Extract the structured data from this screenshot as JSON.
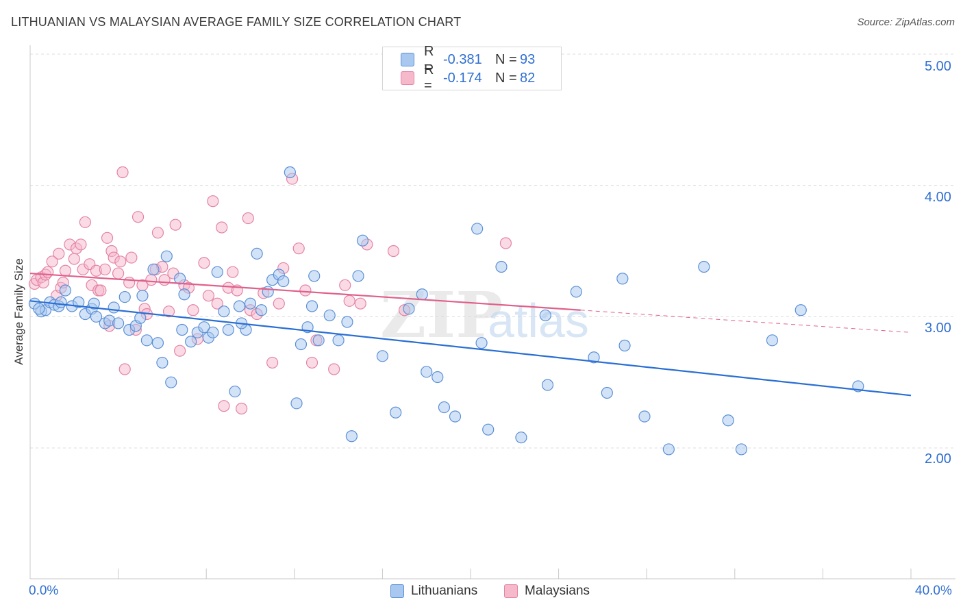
{
  "title": "LITHUANIAN VS MALAYSIAN AVERAGE FAMILY SIZE CORRELATION CHART",
  "source": "Source: ZipAtlas.com",
  "colors": {
    "blue_fill": "#a8c8f0",
    "blue_stroke": "#5b8fd6",
    "blue_line": "#2a6fd4",
    "pink_fill": "#f6b8cb",
    "pink_stroke": "#e483a5",
    "pink_line": "#e0608a",
    "tick_text": "#2f6fd1",
    "grid": "#dcdcdc"
  },
  "legend": {
    "rows": [
      {
        "r_label": "R =",
        "r_value": "-0.381",
        "n_label": "N =",
        "n_value": "93"
      },
      {
        "r_label": "R =",
        "r_value": "-0.174",
        "n_label": "N =",
        "n_value": "82"
      }
    ]
  },
  "chart_data": {
    "type": "scatter",
    "title": "LITHUANIAN VS MALAYSIAN AVERAGE FAMILY SIZE CORRELATION CHART",
    "xlabel": "",
    "ylabel": "Average Family Size",
    "xlim": [
      0,
      40
    ],
    "ylim": [
      1.0,
      5.1
    ],
    "x_tick_labels": [
      "0.0%",
      "40.0%"
    ],
    "y_ticks": [
      2.0,
      3.0,
      4.0,
      5.0
    ],
    "y_tick_labels": [
      "2.00",
      "3.00",
      "4.00",
      "5.00"
    ],
    "grid": "horizontal dashed",
    "legend_position": "top-center",
    "series": [
      {
        "name": "Lithuanians",
        "color": "#a8c8f0",
        "trend": {
          "x": [
            0,
            40
          ],
          "y": [
            3.12,
            2.4
          ]
        },
        "points": [
          [
            0.2,
            3.1
          ],
          [
            0.5,
            3.04
          ],
          [
            0.7,
            3.05
          ],
          [
            0.9,
            3.11
          ],
          [
            1.1,
            3.09
          ],
          [
            1.3,
            3.08
          ],
          [
            1.6,
            3.2
          ],
          [
            1.9,
            3.08
          ],
          [
            2.2,
            3.11
          ],
          [
            2.5,
            3.02
          ],
          [
            2.8,
            3.06
          ],
          [
            3.0,
            3.0
          ],
          [
            3.4,
            2.95
          ],
          [
            3.6,
            2.97
          ],
          [
            3.8,
            3.07
          ],
          [
            4.0,
            2.95
          ],
          [
            4.3,
            3.15
          ],
          [
            4.5,
            2.9
          ],
          [
            4.8,
            2.93
          ],
          [
            5.1,
            3.16
          ],
          [
            5.3,
            2.82
          ],
          [
            5.6,
            3.36
          ],
          [
            5.8,
            2.8
          ],
          [
            6.0,
            2.65
          ],
          [
            6.2,
            3.46
          ],
          [
            6.4,
            2.5
          ],
          [
            6.8,
            3.29
          ],
          [
            7.0,
            3.17
          ],
          [
            7.3,
            2.81
          ],
          [
            7.6,
            2.88
          ],
          [
            7.9,
            2.92
          ],
          [
            8.1,
            2.84
          ],
          [
            8.3,
            2.88
          ],
          [
            8.5,
            3.34
          ],
          [
            8.8,
            3.04
          ],
          [
            9.0,
            2.9
          ],
          [
            9.3,
            2.43
          ],
          [
            9.5,
            3.08
          ],
          [
            9.8,
            2.9
          ],
          [
            10.0,
            3.1
          ],
          [
            10.3,
            3.48
          ],
          [
            10.5,
            3.05
          ],
          [
            10.8,
            3.19
          ],
          [
            11.0,
            3.28
          ],
          [
            11.3,
            3.32
          ],
          [
            11.5,
            3.27
          ],
          [
            11.8,
            4.1
          ],
          [
            12.1,
            2.34
          ],
          [
            12.3,
            2.79
          ],
          [
            12.6,
            2.92
          ],
          [
            12.9,
            3.31
          ],
          [
            13.1,
            2.82
          ],
          [
            13.6,
            3.01
          ],
          [
            14.0,
            2.82
          ],
          [
            14.4,
            2.96
          ],
          [
            14.6,
            2.09
          ],
          [
            14.9,
            3.31
          ],
          [
            15.1,
            3.58
          ],
          [
            16.0,
            2.7
          ],
          [
            16.6,
            2.27
          ],
          [
            17.2,
            3.06
          ],
          [
            17.8,
            3.17
          ],
          [
            18.0,
            2.58
          ],
          [
            18.5,
            2.54
          ],
          [
            18.8,
            2.31
          ],
          [
            19.3,
            2.24
          ],
          [
            20.3,
            3.67
          ],
          [
            20.5,
            2.8
          ],
          [
            20.8,
            2.14
          ],
          [
            21.4,
            3.38
          ],
          [
            22.3,
            2.08
          ],
          [
            23.4,
            3.01
          ],
          [
            23.5,
            2.48
          ],
          [
            24.8,
            3.19
          ],
          [
            25.6,
            2.69
          ],
          [
            26.2,
            2.42
          ],
          [
            26.9,
            3.29
          ],
          [
            27.0,
            2.78
          ],
          [
            27.9,
            2.24
          ],
          [
            29.0,
            1.99
          ],
          [
            30.6,
            3.38
          ],
          [
            31.7,
            2.21
          ],
          [
            32.3,
            1.99
          ],
          [
            33.7,
            2.82
          ],
          [
            35.0,
            3.05
          ],
          [
            37.6,
            2.47
          ],
          [
            0.4,
            3.06
          ],
          [
            1.4,
            3.11
          ],
          [
            2.9,
            3.1
          ],
          [
            5.0,
            2.99
          ],
          [
            6.9,
            2.9
          ],
          [
            9.6,
            2.95
          ],
          [
            12.8,
            3.08
          ]
        ]
      },
      {
        "name": "Malaysians",
        "color": "#f6b8cb",
        "trend": {
          "x": [
            0,
            25
          ],
          "y": [
            3.33,
            3.05
          ]
        },
        "trend_dashed": {
          "x": [
            25,
            40
          ],
          "y": [
            3.05,
            2.88
          ]
        },
        "points": [
          [
            0.2,
            3.25
          ],
          [
            0.3,
            3.28
          ],
          [
            0.5,
            3.3
          ],
          [
            0.6,
            3.26
          ],
          [
            0.7,
            3.32
          ],
          [
            0.8,
            3.34
          ],
          [
            1.0,
            3.42
          ],
          [
            1.2,
            3.16
          ],
          [
            1.3,
            3.48
          ],
          [
            1.4,
            3.22
          ],
          [
            1.5,
            3.26
          ],
          [
            1.6,
            3.35
          ],
          [
            1.8,
            3.55
          ],
          [
            2.0,
            3.44
          ],
          [
            2.1,
            3.52
          ],
          [
            2.3,
            3.55
          ],
          [
            2.4,
            3.36
          ],
          [
            2.5,
            3.72
          ],
          [
            2.7,
            3.4
          ],
          [
            2.8,
            3.24
          ],
          [
            3.0,
            3.35
          ],
          [
            3.1,
            3.2
          ],
          [
            3.2,
            3.2
          ],
          [
            3.4,
            3.36
          ],
          [
            3.5,
            3.6
          ],
          [
            3.6,
            2.93
          ],
          [
            3.7,
            3.5
          ],
          [
            3.8,
            3.45
          ],
          [
            4.0,
            3.33
          ],
          [
            4.1,
            3.42
          ],
          [
            4.2,
            4.1
          ],
          [
            4.3,
            2.6
          ],
          [
            4.5,
            3.26
          ],
          [
            4.6,
            3.45
          ],
          [
            4.8,
            2.9
          ],
          [
            4.9,
            3.76
          ],
          [
            5.1,
            3.24
          ],
          [
            5.2,
            3.06
          ],
          [
            5.3,
            3.02
          ],
          [
            5.5,
            3.28
          ],
          [
            5.7,
            3.36
          ],
          [
            5.8,
            3.64
          ],
          [
            6.0,
            3.38
          ],
          [
            6.1,
            3.28
          ],
          [
            6.3,
            3.04
          ],
          [
            6.5,
            3.33
          ],
          [
            6.6,
            3.7
          ],
          [
            6.8,
            2.74
          ],
          [
            7.0,
            3.24
          ],
          [
            7.2,
            3.22
          ],
          [
            7.4,
            3.05
          ],
          [
            7.6,
            2.83
          ],
          [
            7.9,
            3.41
          ],
          [
            8.1,
            3.16
          ],
          [
            8.3,
            3.88
          ],
          [
            8.5,
            3.1
          ],
          [
            8.7,
            3.68
          ],
          [
            8.8,
            2.32
          ],
          [
            9.0,
            3.22
          ],
          [
            9.2,
            3.34
          ],
          [
            9.4,
            3.2
          ],
          [
            9.6,
            2.3
          ],
          [
            9.9,
            3.75
          ],
          [
            10.0,
            3.05
          ],
          [
            10.3,
            3.02
          ],
          [
            10.6,
            3.18
          ],
          [
            11.0,
            2.65
          ],
          [
            11.3,
            3.1
          ],
          [
            11.5,
            3.37
          ],
          [
            11.9,
            4.05
          ],
          [
            12.2,
            3.52
          ],
          [
            12.5,
            3.2
          ],
          [
            12.8,
            2.65
          ],
          [
            13.0,
            2.82
          ],
          [
            13.8,
            2.6
          ],
          [
            14.3,
            3.24
          ],
          [
            14.5,
            3.12
          ],
          [
            15.0,
            3.1
          ],
          [
            15.3,
            3.55
          ],
          [
            16.5,
            3.5
          ],
          [
            17.0,
            3.05
          ],
          [
            21.6,
            3.56
          ]
        ]
      }
    ]
  },
  "bottom_legend": [
    {
      "label": "Lithuanians"
    },
    {
      "label": "Malaysians"
    }
  ],
  "watermark": {
    "part1": "ZIP",
    "part2": "atlas"
  }
}
